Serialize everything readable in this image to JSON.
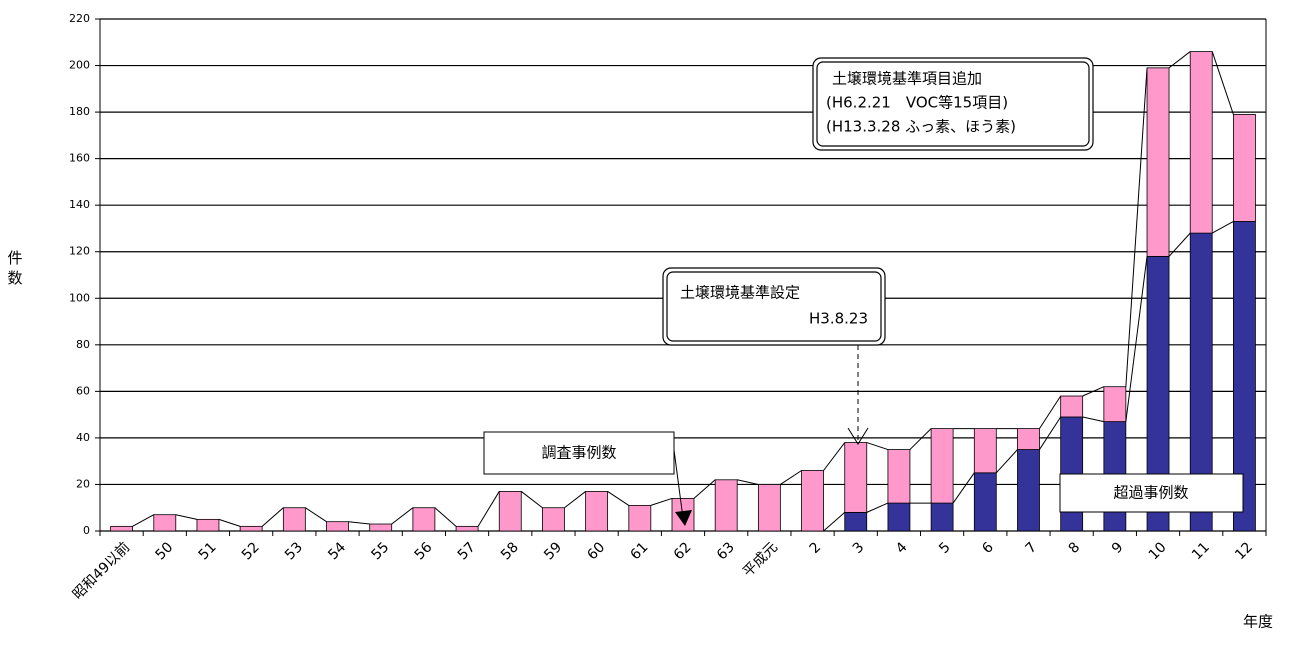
{
  "chart_data": {
    "type": "stacked_bar",
    "y_label": "件数",
    "x_label": "年度",
    "categories": [
      "昭和49以前",
      "50",
      "51",
      "52",
      "53",
      "54",
      "55",
      "56",
      "57",
      "58",
      "59",
      "60",
      "61",
      "62",
      "63",
      "平成元",
      "2",
      "3",
      "4",
      "5",
      "6",
      "7",
      "8",
      "9",
      "10",
      "11",
      "12"
    ],
    "series": [
      {
        "name": "超過事例数",
        "color": "#333399",
        "values": [
          0,
          0,
          0,
          0,
          0,
          0,
          0,
          0,
          0,
          0,
          0,
          0,
          0,
          0,
          0,
          0,
          0,
          8,
          12,
          12,
          25,
          35,
          49,
          47,
          118,
          128,
          133
        ]
      },
      {
        "name": "調査事例数",
        "color": "#ff99cc",
        "values": [
          2,
          7,
          5,
          2,
          10,
          4,
          3,
          10,
          2,
          17,
          10,
          17,
          11,
          14,
          22,
          20,
          26,
          30,
          23,
          32,
          19,
          9,
          9,
          15,
          81,
          78,
          46
        ]
      }
    ],
    "ylim": [
      0,
      220
    ],
    "yticks": [
      0,
      20,
      40,
      60,
      80,
      100,
      120,
      140,
      160,
      180,
      200,
      220
    ],
    "grid": true,
    "annotations": [
      {
        "lines": [
          "土壌環境基準項目追加",
          "(H6.2.21　VOC等15項目)",
          "(H13.3.28 ふっ素、ほう素)"
        ]
      },
      {
        "lines": [
          "土壌環境基準設定",
          "H3.8.23"
        ]
      }
    ]
  }
}
